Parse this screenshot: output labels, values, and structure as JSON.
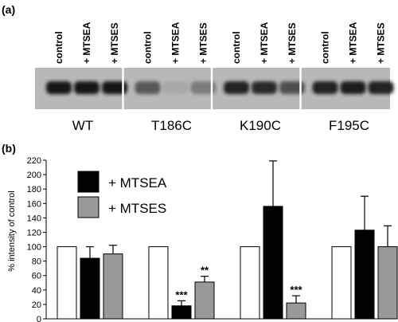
{
  "panel_a": {
    "label": "(a)",
    "lane_labels": [
      "control",
      "+ MTSEA",
      "+ MTSES"
    ],
    "mutants": [
      "WT",
      "T186C",
      "K190C",
      "F195C"
    ],
    "band_intensity": [
      [
        0.95,
        0.92,
        0.95
      ],
      [
        0.55,
        0.1,
        0.35
      ],
      [
        0.85,
        0.8,
        0.6
      ],
      [
        0.85,
        0.88,
        0.85
      ]
    ]
  },
  "panel_b": {
    "label": "(b)",
    "legend": [
      {
        "label": "+ MTSEA",
        "color": "#000000"
      },
      {
        "label": "+ MTSES",
        "color": "#999999"
      }
    ]
  },
  "chart_data": {
    "type": "bar",
    "categories": [
      "WT",
      "T186C",
      "K190C",
      "F195C"
    ],
    "ylabel": "% intensity of control",
    "ylim": [
      0,
      220
    ],
    "yticks": [
      0,
      20,
      40,
      60,
      80,
      100,
      120,
      140,
      160,
      180,
      200,
      220
    ],
    "grid": false,
    "legend_position": "top-left",
    "series": [
      {
        "key": "control",
        "color": "#ffffff",
        "values": [
          100,
          100,
          100,
          100
        ],
        "errors": [
          0,
          0,
          0,
          0
        ]
      },
      {
        "key": "mtsea",
        "color": "#000000",
        "values": [
          84,
          18,
          156,
          123
        ],
        "errors": [
          16,
          7,
          63,
          47
        ]
      },
      {
        "key": "mtses",
        "color": "#999999",
        "values": [
          90,
          51,
          22,
          100
        ],
        "errors": [
          12,
          8,
          10,
          29
        ]
      }
    ],
    "annotations": [
      {
        "category": "T186C",
        "series": "mtsea",
        "text": "***"
      },
      {
        "category": "T186C",
        "series": "mtses",
        "text": "**"
      },
      {
        "category": "K190C",
        "series": "mtses",
        "text": "***"
      }
    ]
  }
}
